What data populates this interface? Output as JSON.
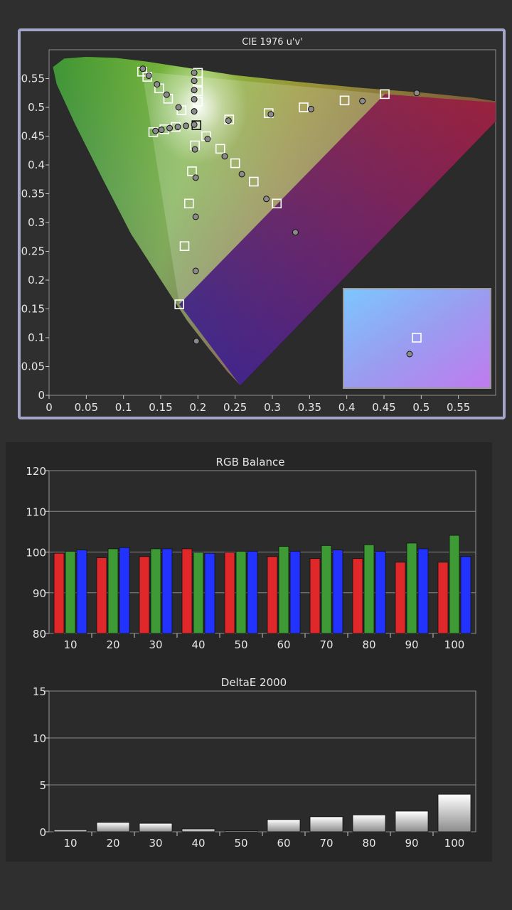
{
  "colors": {
    "page_bg": "#2f2f2f",
    "panel_bg": "#262626",
    "plot_bg": "#2b2b2b",
    "cie_frame": "#a3a5c9",
    "grid": "#9a9a9a",
    "red": "#e0282a",
    "green": "#3d9a35",
    "blue": "#2333ff",
    "delta_bar": "#d9d9d9"
  },
  "chart_data": [
    {
      "type": "scatter",
      "title": "CIE 1976 u'v'",
      "xlim": [
        0,
        0.6
      ],
      "ylim": [
        0,
        0.6
      ],
      "x_ticks": [
        "0",
        "0.05",
        "0.1",
        "0.15",
        "0.2",
        "0.25",
        "0.3",
        "0.35",
        "0.4",
        "0.45",
        "0.5",
        "0.55"
      ],
      "y_ticks": [
        "0",
        "0.05",
        "0.1",
        "0.15",
        "0.2",
        "0.25",
        "0.3",
        "0.35",
        "0.4",
        "0.45",
        "0.5",
        "0.55"
      ],
      "gamut_triangle": {
        "red": [
          0.451,
          0.523
        ],
        "green": [
          0.125,
          0.562
        ],
        "blue": [
          0.175,
          0.158
        ]
      },
      "targets": [
        [
          0.125,
          0.562
        ],
        [
          0.132,
          0.553
        ],
        [
          0.148,
          0.533
        ],
        [
          0.16,
          0.515
        ],
        [
          0.178,
          0.495
        ],
        [
          0.14,
          0.457
        ],
        [
          0.155,
          0.462
        ],
        [
          0.17,
          0.466
        ],
        [
          0.2,
          0.56
        ],
        [
          0.2,
          0.545
        ],
        [
          0.2,
          0.528
        ],
        [
          0.2,
          0.51
        ],
        [
          0.198,
          0.469
        ],
        [
          0.211,
          0.45
        ],
        [
          0.23,
          0.428
        ],
        [
          0.25,
          0.403
        ],
        [
          0.275,
          0.371
        ],
        [
          0.306,
          0.333
        ],
        [
          0.242,
          0.479
        ],
        [
          0.295,
          0.49
        ],
        [
          0.342,
          0.5
        ],
        [
          0.397,
          0.512
        ],
        [
          0.451,
          0.523
        ],
        [
          0.196,
          0.434
        ],
        [
          0.192,
          0.389
        ],
        [
          0.188,
          0.333
        ],
        [
          0.182,
          0.259
        ],
        [
          0.175,
          0.158
        ]
      ],
      "measured": [
        [
          0.126,
          0.567
        ],
        [
          0.134,
          0.555
        ],
        [
          0.145,
          0.54
        ],
        [
          0.158,
          0.522
        ],
        [
          0.174,
          0.5
        ],
        [
          0.143,
          0.459
        ],
        [
          0.151,
          0.461
        ],
        [
          0.162,
          0.464
        ],
        [
          0.173,
          0.466
        ],
        [
          0.184,
          0.468
        ],
        [
          0.195,
          0.56
        ],
        [
          0.195,
          0.546
        ],
        [
          0.195,
          0.53
        ],
        [
          0.195,
          0.514
        ],
        [
          0.195,
          0.493
        ],
        [
          0.195,
          0.47
        ],
        [
          0.213,
          0.445
        ],
        [
          0.236,
          0.415
        ],
        [
          0.259,
          0.384
        ],
        [
          0.292,
          0.341
        ],
        [
          0.331,
          0.283
        ],
        [
          0.241,
          0.477
        ],
        [
          0.298,
          0.488
        ],
        [
          0.352,
          0.497
        ],
        [
          0.421,
          0.511
        ],
        [
          0.494,
          0.525
        ],
        [
          0.196,
          0.427
        ],
        [
          0.197,
          0.378
        ],
        [
          0.197,
          0.31
        ],
        [
          0.197,
          0.216
        ],
        [
          0.198,
          0.094
        ]
      ]
    },
    {
      "type": "bar",
      "title": "RGB Balance",
      "categories": [
        "10",
        "20",
        "30",
        "40",
        "50",
        "60",
        "70",
        "80",
        "90",
        "100"
      ],
      "ylim": [
        80,
        120
      ],
      "y_ticks": [
        "80",
        "90",
        "100",
        "110",
        "120"
      ],
      "series": [
        {
          "color": "red",
          "values": [
            99.7,
            98.6,
            98.9,
            100.8,
            99.9,
            98.9,
            98.4,
            98.4,
            97.5,
            97.5
          ]
        },
        {
          "color": "green",
          "values": [
            100.2,
            100.8,
            100.8,
            99.9,
            100.2,
            101.4,
            101.6,
            101.8,
            102.2,
            104.1
          ]
        },
        {
          "color": "blue",
          "values": [
            100.5,
            101.1,
            100.8,
            99.7,
            100.2,
            100.2,
            100.5,
            100.2,
            100.8,
            98.9
          ]
        }
      ]
    },
    {
      "type": "bar",
      "title": "DeltaE 2000",
      "categories": [
        "10",
        "20",
        "30",
        "40",
        "50",
        "60",
        "70",
        "80",
        "90",
        "100"
      ],
      "ylim": [
        0,
        15
      ],
      "y_ticks": [
        "0",
        "5",
        "10",
        "15"
      ],
      "values": [
        0.2,
        1.0,
        0.9,
        0.3,
        0.1,
        1.3,
        1.6,
        1.8,
        2.2,
        4.0
      ]
    }
  ]
}
